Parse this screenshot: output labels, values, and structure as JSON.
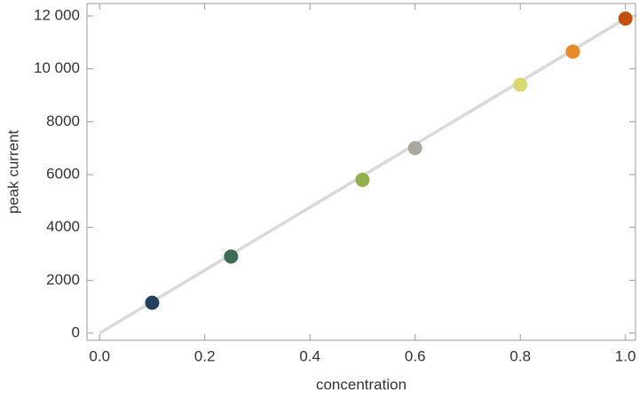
{
  "chart_data": {
    "type": "scatter",
    "x_label": "concentration",
    "y_label": "peak current",
    "x": [
      0.1,
      0.25,
      0.5,
      0.6,
      0.8,
      0.9,
      1.0
    ],
    "values": [
      1150,
      2900,
      5800,
      7000,
      9400,
      10650,
      11900
    ],
    "colors": [
      "#24405e",
      "#3f6b55",
      "#93b04c",
      "#a9a9a2",
      "#d8d874",
      "#e8892c",
      "#c4500f"
    ],
    "fit": {
      "x": [
        0,
        1.0
      ],
      "y": [
        0,
        11900
      ],
      "color": "#d9d9d9"
    },
    "xlim": [
      -0.024,
      1.019
    ],
    "ylim": [
      -270,
      12470
    ],
    "xticks": [
      {
        "value": 0,
        "label": "0.0"
      },
      0.2,
      0.4,
      0.6,
      0.8,
      {
        "value": 1,
        "label": "1.0"
      }
    ],
    "yticks": [
      0,
      2000,
      4000,
      6000,
      8000,
      {
        "value": 10000,
        "label": "10 000"
      },
      {
        "value": 12000,
        "label": "12 000"
      }
    ]
  }
}
